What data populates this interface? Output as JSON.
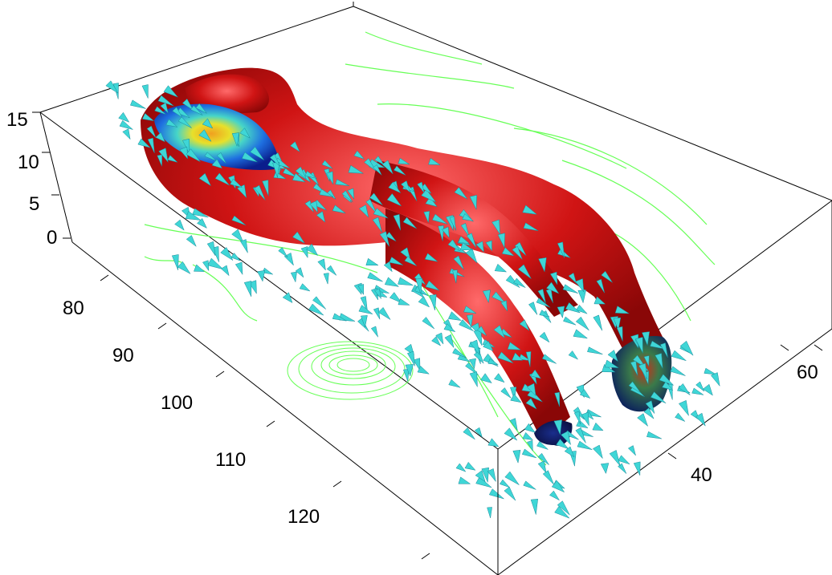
{
  "chart_data": {
    "type": "3d-volume",
    "title": "",
    "xlabel": "",
    "ylabel": "",
    "zlabel": "",
    "x_axis": {
      "ticks": [
        80,
        90,
        100,
        110,
        120
      ],
      "tick_labels": [
        "80",
        "90",
        "100",
        "110",
        "120"
      ],
      "range": [
        72,
        132
      ]
    },
    "y_axis": {
      "ticks": [
        40,
        60
      ],
      "tick_labels": [
        "40",
        "60"
      ],
      "range": [
        22,
        70
      ]
    },
    "z_axis": {
      "ticks": [
        0,
        5,
        10,
        15
      ],
      "tick_labels": [
        "0",
        "5",
        "10",
        "15"
      ],
      "range": [
        0,
        16
      ]
    },
    "grid": false,
    "legend": "none",
    "colors": {
      "isosurface": "#d01414",
      "cone": "#3fd6d6",
      "streamline": "#66ff55",
      "slice_cold": "#0a1e8c",
      "slice_hot": "#f0a020"
    },
    "elements": [
      "isosurface",
      "coneplot",
      "streamlines",
      "slice"
    ]
  }
}
